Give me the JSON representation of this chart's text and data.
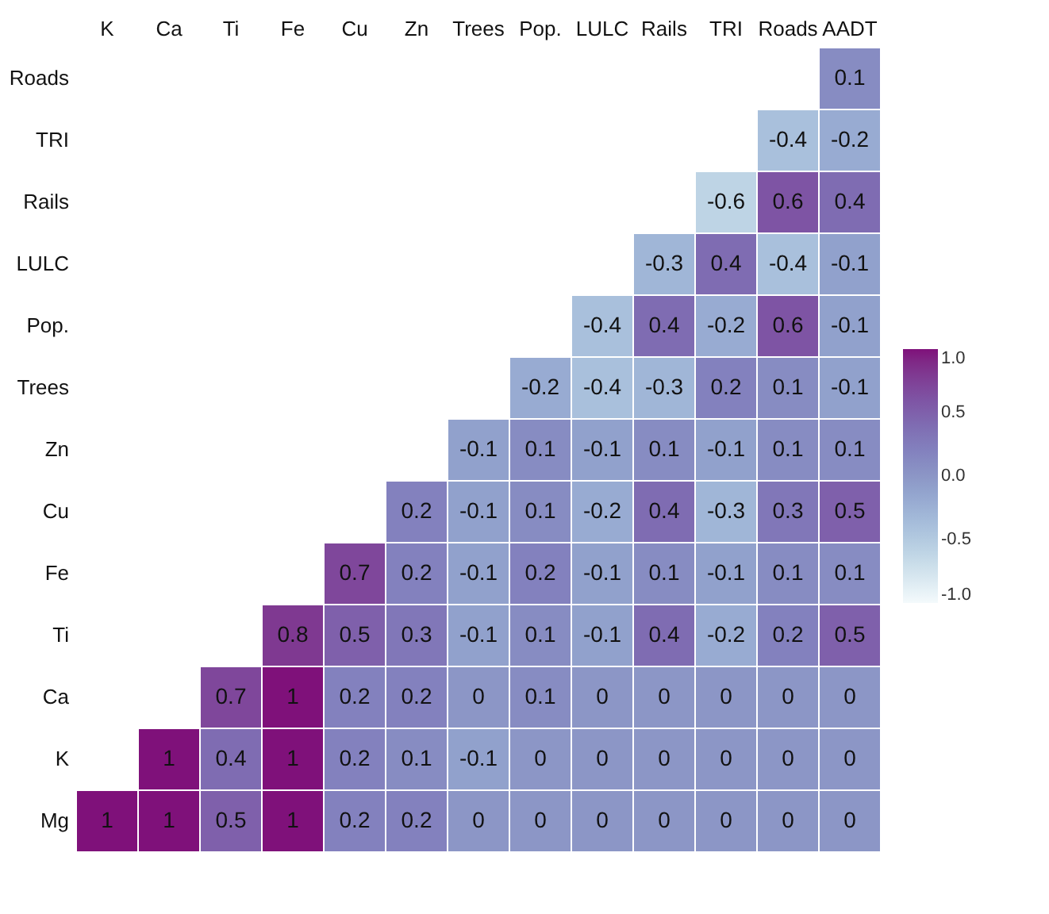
{
  "chart_data": {
    "type": "heatmap",
    "categories": [
      "K",
      "Ca",
      "Ti",
      "Fe",
      "Cu",
      "Zn",
      "Trees",
      "Pop.",
      "LULC",
      "Rails",
      "TRI",
      "Roads",
      "AADT"
    ],
    "y_categories": [
      "Roads",
      "TRI",
      "Rails",
      "LULC",
      "Pop.",
      "Trees",
      "Zn",
      "Cu",
      "Fe",
      "Ti",
      "Ca",
      "K",
      "Mg"
    ],
    "cells": [
      [
        null,
        null,
        null,
        null,
        null,
        null,
        null,
        null,
        null,
        null,
        null,
        null,
        0.1
      ],
      [
        null,
        null,
        null,
        null,
        null,
        null,
        null,
        null,
        null,
        null,
        null,
        -0.4,
        -0.2
      ],
      [
        null,
        null,
        null,
        null,
        null,
        null,
        null,
        null,
        null,
        null,
        -0.6,
        0.6,
        0.4
      ],
      [
        null,
        null,
        null,
        null,
        null,
        null,
        null,
        null,
        null,
        -0.3,
        0.4,
        -0.4,
        -0.1
      ],
      [
        null,
        null,
        null,
        null,
        null,
        null,
        null,
        null,
        -0.4,
        0.4,
        -0.2,
        0.6,
        -0.1
      ],
      [
        null,
        null,
        null,
        null,
        null,
        null,
        null,
        -0.2,
        -0.4,
        -0.3,
        0.2,
        0.1,
        -0.1
      ],
      [
        null,
        null,
        null,
        null,
        null,
        null,
        -0.1,
        0.1,
        -0.1,
        0.1,
        -0.1,
        0.1,
        0.1
      ],
      [
        null,
        null,
        null,
        null,
        null,
        0.2,
        -0.1,
        0.1,
        -0.2,
        0.4,
        -0.3,
        0.3,
        0.5
      ],
      [
        null,
        null,
        null,
        null,
        0.7,
        0.2,
        -0.1,
        0.2,
        -0.1,
        0.1,
        -0.1,
        0.1,
        0.1
      ],
      [
        null,
        null,
        null,
        0.8,
        0.5,
        0.3,
        -0.1,
        0.1,
        -0.1,
        0.4,
        -0.2,
        0.2,
        0.5
      ],
      [
        null,
        null,
        0.7,
        1,
        0.2,
        0.2,
        0,
        0.1,
        0,
        0,
        0,
        0,
        0
      ],
      [
        null,
        1,
        0.4,
        1,
        0.2,
        0.1,
        -0.1,
        0,
        0,
        0,
        0,
        0,
        0
      ],
      [
        1,
        1,
        0.5,
        1,
        0.2,
        0.2,
        0,
        0,
        0,
        0,
        0,
        0,
        0
      ]
    ],
    "data_labels": true,
    "clim": [
      -1,
      1
    ],
    "cticks": [
      {
        "value": -1,
        "label": "-1.0"
      },
      {
        "value": -0.5,
        "label": "-0.5"
      },
      {
        "value": 0,
        "label": "0.0"
      },
      {
        "value": 0.5,
        "label": "0.5"
      },
      {
        "value": 1,
        "label": "1.0"
      }
    ]
  }
}
